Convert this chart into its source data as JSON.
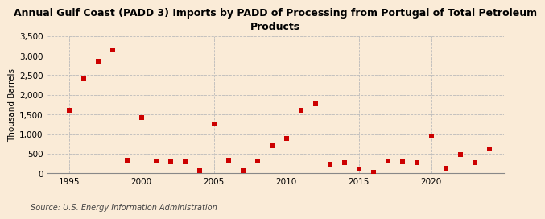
{
  "title": "Annual Gulf Coast (PADD 3) Imports by PADD of Processing from Portugal of Total Petroleum\nProducts",
  "ylabel": "Thousand Barrels",
  "source": "Source: U.S. Energy Information Administration",
  "background_color": "#faebd7",
  "plot_background_color": "#faebd7",
  "marker_color": "#cc0000",
  "marker": "s",
  "markersize": 4,
  "xlim": [
    1993.5,
    2025
  ],
  "ylim": [
    0,
    3500
  ],
  "yticks": [
    0,
    500,
    1000,
    1500,
    2000,
    2500,
    3000,
    3500
  ],
  "xticks": [
    1995,
    2000,
    2005,
    2010,
    2015,
    2020
  ],
  "title_fontsize": 9,
  "label_fontsize": 7.5,
  "source_fontsize": 7,
  "data": {
    "1995": 1600,
    "1996": 2400,
    "1997": 2850,
    "1998": 3150,
    "1999": 340,
    "2000": 1420,
    "2001": 310,
    "2002": 290,
    "2003": 290,
    "2004": 60,
    "2005": 1260,
    "2006": 340,
    "2007": 60,
    "2008": 310,
    "2009": 700,
    "2010": 880,
    "2011": 1600,
    "2012": 1770,
    "2013": 240,
    "2014": 270,
    "2015": 100,
    "2016": 30,
    "2017": 310,
    "2018": 290,
    "2019": 270,
    "2020": 950,
    "2021": 130,
    "2022": 480,
    "2023": 270,
    "2024": 620
  }
}
